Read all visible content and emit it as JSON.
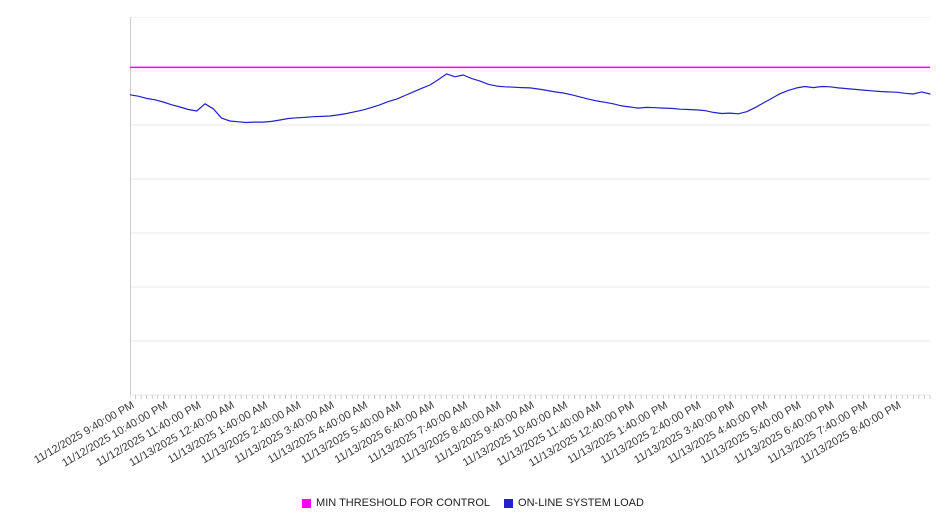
{
  "chart_data": {
    "type": "line",
    "title": "",
    "xlabel": "",
    "ylabel": "",
    "ylim": [
      0,
      105
    ],
    "grid": true,
    "grid_step": 15,
    "legend_position": "bottom",
    "x_minor_ticks_per_label": 6,
    "x_labels": [
      "11/12/2025 9:40:00 PM",
      "11/12/2025 10:40:00 PM",
      "11/12/2025 11:40:00 PM",
      "11/13/2025 12:40:00 AM",
      "11/13/2025 1:40:00 AM",
      "11/13/2025 2:40:00 AM",
      "11/13/2025 3:40:00 AM",
      "11/13/2025 4:40:00 AM",
      "11/13/2025 5:40:00 AM",
      "11/13/2025 6:40:00 AM",
      "11/13/2025 7:40:00 AM",
      "11/13/2025 8:40:00 AM",
      "11/13/2025 9:40:00 AM",
      "11/13/2025 10:40:00 AM",
      "11/13/2025 11:40:00 AM",
      "11/13/2025 12:40:00 PM",
      "11/13/2025 1:40:00 PM",
      "11/13/2025 2:40:00 PM",
      "11/13/2025 3:40:00 PM",
      "11/13/2025 4:40:00 PM",
      "11/13/2025 5:40:00 PM",
      "11/13/2025 6:40:00 PM",
      "11/13/2025 7:40:00 PM",
      "11/13/2025 8:40:00 PM"
    ],
    "series": [
      {
        "name": "MIN THRESHOLD FOR CONTROL",
        "color": "#FF00FF",
        "style": "constant",
        "value": 91
      },
      {
        "name": "ON-LINE SYSTEM LOAD",
        "color": "#2222CC",
        "style": "line",
        "values": [
          83.4,
          83.0,
          82.4,
          82.0,
          81.4,
          80.6,
          80.0,
          79.3,
          78.9,
          80.9,
          79.5,
          76.9,
          76.1,
          75.9,
          75.7,
          75.8,
          75.8,
          76.0,
          76.4,
          76.8,
          77.0,
          77.1,
          77.3,
          77.4,
          77.5,
          77.8,
          78.2,
          78.7,
          79.2,
          79.9,
          80.6,
          81.5,
          82.2,
          83.2,
          84.2,
          85.2,
          86.1,
          87.6,
          89.2,
          88.4,
          88.9,
          87.9,
          87.2,
          86.3,
          85.8,
          85.6,
          85.5,
          85.4,
          85.3,
          85.0,
          84.6,
          84.2,
          83.9,
          83.4,
          82.8,
          82.2,
          81.7,
          81.3,
          80.9,
          80.3,
          80.0,
          79.7,
          79.9,
          79.8,
          79.7,
          79.6,
          79.4,
          79.3,
          79.2,
          79.0,
          78.5,
          78.2,
          78.3,
          78.1,
          78.7,
          79.8,
          81.1,
          82.4,
          83.7,
          84.6,
          85.3,
          85.7,
          85.4,
          85.7,
          85.6,
          85.3,
          85.1,
          84.9,
          84.7,
          84.5,
          84.3,
          84.2,
          84.1,
          83.8,
          83.6,
          84.2,
          83.6
        ]
      }
    ]
  },
  "colors": {
    "gridline": "#e9e9e9",
    "axis": "#cccccc",
    "tick": "#b5b5b5",
    "label_text": "#3a3a3a"
  }
}
